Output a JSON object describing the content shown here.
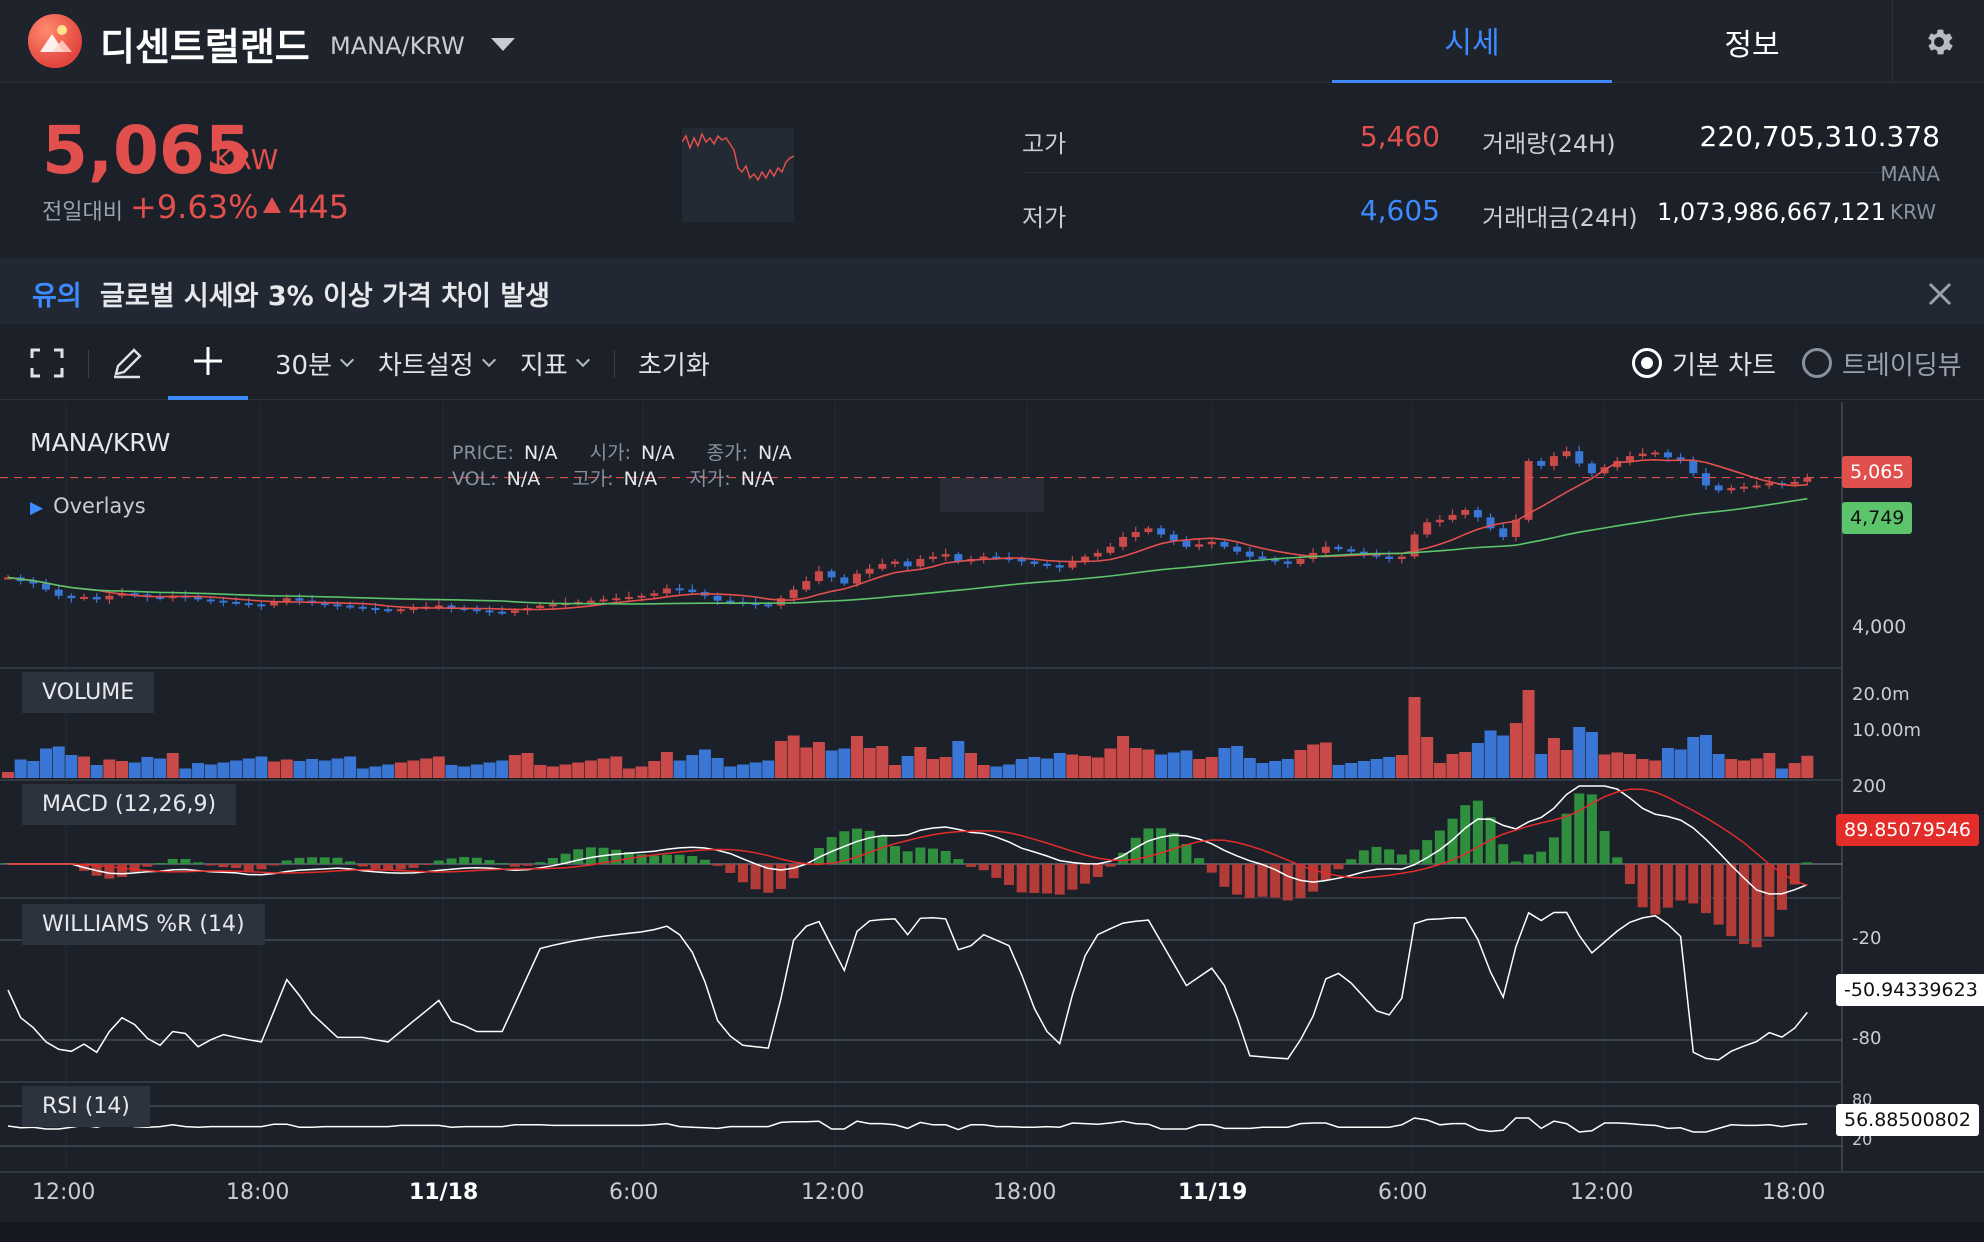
{
  "header": {
    "coin_name": "디센트럴랜드",
    "pair": "MANA/KRW",
    "tabs": [
      {
        "label": "시세",
        "active": true
      },
      {
        "label": "정보",
        "active": false
      }
    ],
    "settings_icon": "gear-icon"
  },
  "summary": {
    "price": "5,065",
    "price_unit": "KRW",
    "change_label": "전일대비",
    "change_pct": "+9.63%",
    "change_amt": "445",
    "high_label": "고가",
    "high": "5,460",
    "low_label": "저가",
    "low": "4,605",
    "volume_label": "거래량(24H)",
    "volume": "220,705,310.378",
    "volume_unit": "MANA",
    "amount_label": "거래대금(24H)",
    "amount": "1,073,986,667,121",
    "amount_unit": "KRW",
    "colors": {
      "up": "#e2504d",
      "down": "#3d8bff"
    }
  },
  "notice": {
    "tag": "유의",
    "text": "글로벌 시세와 3% 이상 가격 차이 발생"
  },
  "toolbar": {
    "interval": "30분",
    "chart_settings": "차트설정",
    "indicators": "지표",
    "reset": "초기화",
    "chart_modes": [
      {
        "label": "기본 차트",
        "selected": true
      },
      {
        "label": "트레이딩뷰",
        "selected": false
      }
    ]
  },
  "chart": {
    "symbol": "MANA/KRW",
    "overlays_label": "Overlays",
    "ohlc_row1": [
      {
        "k": "PRICE:",
        "v": "N/A"
      },
      {
        "k": "시가:",
        "v": "N/A"
      },
      {
        "k": "종가:",
        "v": "N/A"
      }
    ],
    "ohlc_row2": [
      {
        "k": "VOL:",
        "v": "N/A"
      },
      {
        "k": "고가:",
        "v": "N/A"
      },
      {
        "k": "저가:",
        "v": "N/A"
      }
    ],
    "price_tag": "5,065",
    "ma_tag": "4,749",
    "price_tick": "4,000",
    "panes": {
      "volume": {
        "label": "VOLUME",
        "ticks": [
          "20.0m",
          "10.00m"
        ]
      },
      "macd": {
        "label": "MACD (12,26,9)",
        "tick": "200",
        "tag": "89.85079546"
      },
      "williams": {
        "label": "WILLIAMS %R (14)",
        "ticks": [
          "-20",
          "-80"
        ],
        "tag": "-50.94339623"
      },
      "rsi": {
        "label": "RSI (14)",
        "ticks": [
          "80",
          "20"
        ],
        "tag": "56.88500802"
      }
    },
    "x_labels": [
      "12:00",
      "18:00",
      "11/18",
      "6:00",
      "12:00",
      "18:00",
      "11/19",
      "6:00",
      "12:00",
      "18:00"
    ]
  },
  "chart_data": {
    "type": "candlestick",
    "y_range_price": [
      3600,
      5600
    ],
    "closes": [
      4250,
      4220,
      4200,
      4150,
      4100,
      4080,
      4090,
      4070,
      4100,
      4120,
      4110,
      4090,
      4080,
      4100,
      4090,
      4070,
      4060,
      4050,
      4040,
      4030,
      4020,
      4050,
      4080,
      4060,
      4040,
      4030,
      4020,
      4010,
      4000,
      3990,
      3980,
      3990,
      4000,
      4010,
      4020,
      4000,
      3990,
      3980,
      3970,
      3960,
      3980,
      4000,
      4020,
      4030,
      4040,
      4050,
      4060,
      4070,
      4080,
      4090,
      4100,
      4120,
      4160,
      4150,
      4130,
      4100,
      4060,
      4050,
      4040,
      4030,
      4020,
      4080,
      4150,
      4220,
      4300,
      4250,
      4200,
      4280,
      4320,
      4360,
      4380,
      4340,
      4400,
      4420,
      4440,
      4380,
      4400,
      4420,
      4410,
      4400,
      4380,
      4360,
      4350,
      4330,
      4380,
      4420,
      4450,
      4500,
      4580,
      4620,
      4650,
      4600,
      4550,
      4500,
      4520,
      4540,
      4500,
      4460,
      4420,
      4400,
      4380,
      4360,
      4400,
      4450,
      4500,
      4480,
      4460,
      4440,
      4420,
      4400,
      4420,
      4600,
      4700,
      4720,
      4760,
      4800,
      4740,
      4650,
      4580,
      4720,
      5200,
      5160,
      5240,
      5280,
      5180,
      5100,
      5150,
      5200,
      5240,
      5260,
      5270,
      5230,
      5200,
      5100,
      5000,
      4960,
      4980,
      4990,
      5000,
      5020,
      5010,
      5030,
      5065
    ],
    "note_ma": "two moving averages (red fast, green slow)"
  }
}
